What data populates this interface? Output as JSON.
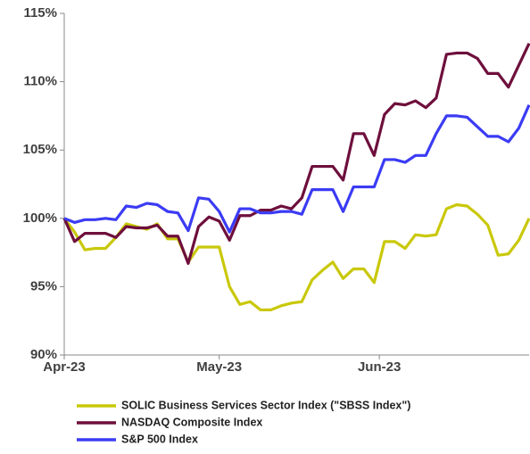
{
  "chart_data": {
    "type": "line",
    "x": [
      0,
      2,
      4,
      6,
      8,
      10,
      12,
      14,
      16,
      18,
      20,
      22,
      24,
      26,
      28,
      30,
      32,
      34,
      36,
      38,
      40,
      42,
      44,
      46,
      48,
      50,
      52,
      54,
      56,
      58,
      60,
      62,
      64,
      66,
      68,
      70,
      72,
      74,
      76,
      78,
      80,
      82,
      84,
      86,
      88,
      90
    ],
    "xlim": [
      0,
      90
    ],
    "xticks": [
      {
        "value": 0,
        "label": "Apr-23"
      },
      {
        "value": 30,
        "label": "May-23"
      },
      {
        "value": 61,
        "label": "Jun-23"
      }
    ],
    "ylim": [
      90,
      115
    ],
    "yticks": [
      {
        "value": 90,
        "label": "90%"
      },
      {
        "value": 95,
        "label": "95%"
      },
      {
        "value": 100,
        "label": "100%"
      },
      {
        "value": 105,
        "label": "105%"
      },
      {
        "value": 110,
        "label": "110%"
      },
      {
        "value": 115,
        "label": "115%"
      }
    ],
    "grid": false,
    "legend": "bottom",
    "series": [
      {
        "name": "SOLIC Business Services Sector Index (\"SBSS Index\")",
        "color": "#c9c80a",
        "values": [
          100,
          99.0,
          97.7,
          97.8,
          97.8,
          98.6,
          99.6,
          99.4,
          99.2,
          99.6,
          98.5,
          98.5,
          96.8,
          97.9,
          97.9,
          97.9,
          95.0,
          93.7,
          93.9,
          93.3,
          93.3,
          93.6,
          93.8,
          93.9,
          95.5,
          96.2,
          96.8,
          95.6,
          96.3,
          96.3,
          95.3,
          98.3,
          98.3,
          97.8,
          98.8,
          98.7,
          98.8,
          100.7,
          101.0,
          100.9,
          100.3,
          99.5,
          97.3,
          97.4,
          98.4,
          100.0
        ]
      },
      {
        "name": "NASDAQ Composite Index",
        "color": "#6e0f3c",
        "values": [
          100,
          98.3,
          98.9,
          98.9,
          98.9,
          98.6,
          99.4,
          99.3,
          99.3,
          99.5,
          98.7,
          98.7,
          96.7,
          99.4,
          100.1,
          99.8,
          98.4,
          100.2,
          100.2,
          100.6,
          100.6,
          100.9,
          100.7,
          101.5,
          103.8,
          103.8,
          103.8,
          102.8,
          106.2,
          106.2,
          104.6,
          107.6,
          108.4,
          108.3,
          108.6,
          108.1,
          108.8,
          112.0,
          112.1,
          112.1,
          111.7,
          110.6,
          110.6,
          109.6,
          111.2,
          112.8
        ]
      },
      {
        "name": "S&P 500 Index",
        "color": "#3b3bf5",
        "values": [
          100,
          99.7,
          99.9,
          99.9,
          100.0,
          99.9,
          100.9,
          100.8,
          101.1,
          101.0,
          100.5,
          100.4,
          99.1,
          101.5,
          101.4,
          100.5,
          99.0,
          100.7,
          100.7,
          100.4,
          100.4,
          100.5,
          100.5,
          100.3,
          102.1,
          102.1,
          102.1,
          100.5,
          102.3,
          102.3,
          102.3,
          104.3,
          104.3,
          104.1,
          104.6,
          104.6,
          106.2,
          107.5,
          107.5,
          107.4,
          106.7,
          106.0,
          106.0,
          105.6,
          106.6,
          108.3
        ]
      }
    ]
  }
}
